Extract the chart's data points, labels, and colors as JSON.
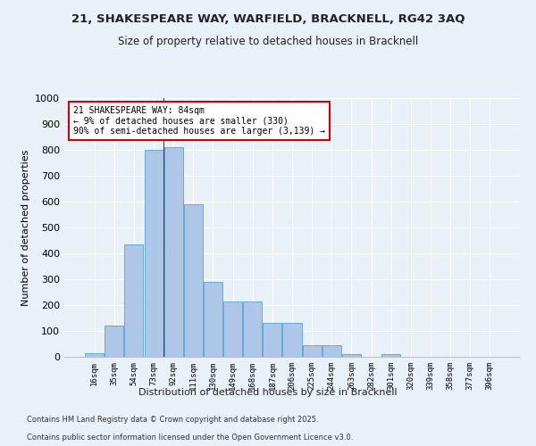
{
  "title_line1": "21, SHAKESPEARE WAY, WARFIELD, BRACKNELL, RG42 3AQ",
  "title_line2": "Size of property relative to detached houses in Bracknell",
  "xlabel": "Distribution of detached houses by size in Bracknell",
  "ylabel": "Number of detached properties",
  "categories": [
    "16sqm",
    "35sqm",
    "54sqm",
    "73sqm",
    "92sqm",
    "111sqm",
    "130sqm",
    "149sqm",
    "168sqm",
    "187sqm",
    "206sqm",
    "225sqm",
    "244sqm",
    "263sqm",
    "282sqm",
    "301sqm",
    "320sqm",
    "339sqm",
    "358sqm",
    "377sqm",
    "396sqm"
  ],
  "values": [
    15,
    120,
    435,
    800,
    810,
    590,
    290,
    215,
    215,
    130,
    130,
    45,
    45,
    10,
    0,
    10,
    0,
    0,
    0,
    0,
    0
  ],
  "bar_color": "#aec6e8",
  "bar_edge_color": "#5a9fd4",
  "bg_color": "#e8f0f8",
  "grid_color": "#ffffff",
  "annotation_text": "21 SHAKESPEARE WAY: 84sqm\n← 9% of detached houses are smaller (330)\n90% of semi-detached houses are larger (3,139) →",
  "annotation_box_color": "#ffffff",
  "annotation_box_edge_color": "#cc0000",
  "ylim": [
    0,
    1000
  ],
  "yticks": [
    0,
    100,
    200,
    300,
    400,
    500,
    600,
    700,
    800,
    900,
    1000
  ],
  "footer_line1": "Contains HM Land Registry data © Crown copyright and database right 2025.",
  "footer_line2": "Contains public sector information licensed under the Open Government Licence v3.0."
}
